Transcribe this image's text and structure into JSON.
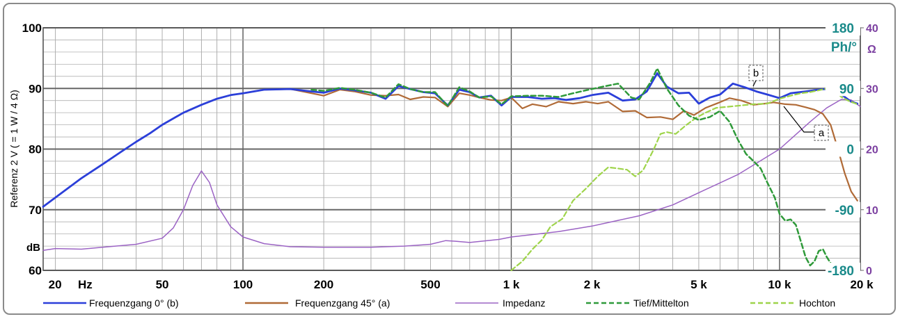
{
  "chart_data": {
    "type": "line",
    "x_scale": "log",
    "xlim": [
      18,
      20000
    ],
    "x_ticks": [
      {
        "value": 20,
        "label": "20"
      },
      {
        "value": 50,
        "label": "50"
      },
      {
        "value": 100,
        "label": "100"
      },
      {
        "value": 200,
        "label": "200"
      },
      {
        "value": 500,
        "label": "500"
      },
      {
        "value": 1000,
        "label": "1 k"
      },
      {
        "value": 2000,
        "label": "2 k"
      },
      {
        "value": 5000,
        "label": "5 k"
      },
      {
        "value": 10000,
        "label": "10 k"
      },
      {
        "value": 20000,
        "label": "20 k"
      }
    ],
    "x_unit": "Hz",
    "left_axis": {
      "label": "Referenz 2 V  ( = 1 W / 4 Ω)",
      "unit": "dB",
      "ylim": [
        60,
        100
      ],
      "ticks": [
        60,
        70,
        80,
        90,
        100
      ]
    },
    "phase_axis": {
      "unit": "Ph/°",
      "ylim": [
        -180,
        180
      ],
      "ticks": [
        180,
        90,
        0,
        -90,
        -180
      ]
    },
    "impedance_axis": {
      "unit": "Ω",
      "ylim": [
        0,
        40
      ],
      "ticks": [
        40,
        30,
        20,
        10,
        0
      ]
    },
    "grid": true,
    "legend_position": "bottom",
    "callouts": [
      {
        "label": "b",
        "series": "Frequenzgang 0° (b)"
      },
      {
        "label": "a",
        "series": "Frequenzgang 45° (a)"
      }
    ],
    "series": [
      {
        "name": "Frequenzgang 0° (b)",
        "axis": "dB",
        "color": "#2b3fd9",
        "dash": "solid",
        "width": 2.8,
        "points": [
          [
            18,
            70.5
          ],
          [
            20,
            72
          ],
          [
            25,
            75.2
          ],
          [
            30,
            77.5
          ],
          [
            35,
            79.5
          ],
          [
            40,
            81.2
          ],
          [
            45,
            82.6
          ],
          [
            50,
            84
          ],
          [
            60,
            86
          ],
          [
            70,
            87.3
          ],
          [
            80,
            88.3
          ],
          [
            90,
            88.9
          ],
          [
            100,
            89.2
          ],
          [
            120,
            89.8
          ],
          [
            150,
            89.9
          ],
          [
            180,
            89.5
          ],
          [
            200,
            89.3
          ],
          [
            230,
            90
          ],
          [
            260,
            89.7
          ],
          [
            300,
            89.3
          ],
          [
            340,
            88.3
          ],
          [
            380,
            90.4
          ],
          [
            420,
            89.9
          ],
          [
            470,
            89.4
          ],
          [
            520,
            89.2
          ],
          [
            580,
            87.2
          ],
          [
            640,
            89.8
          ],
          [
            700,
            89.4
          ],
          [
            760,
            88.5
          ],
          [
            840,
            88.8
          ],
          [
            920,
            87.2
          ],
          [
            1000,
            88.6
          ],
          [
            1150,
            88.6
          ],
          [
            1300,
            88.3
          ],
          [
            1450,
            88.4
          ],
          [
            1600,
            88.1
          ],
          [
            1800,
            88.4
          ],
          [
            2000,
            88.9
          ],
          [
            2300,
            89.3
          ],
          [
            2600,
            88
          ],
          [
            2900,
            88.2
          ],
          [
            3200,
            89.5
          ],
          [
            3500,
            92.5
          ],
          [
            3800,
            90.3
          ],
          [
            4200,
            89.2
          ],
          [
            4600,
            89.3
          ],
          [
            5000,
            87.5
          ],
          [
            5500,
            88.5
          ],
          [
            6000,
            89
          ],
          [
            6700,
            90.8
          ],
          [
            7400,
            90.2
          ],
          [
            8200,
            89.5
          ],
          [
            9000,
            89
          ],
          [
            10000,
            88.4
          ],
          [
            11000,
            89.2
          ],
          [
            12500,
            89.5
          ],
          [
            14000,
            89.8
          ],
          [
            15500,
            90
          ],
          [
            17000,
            89
          ],
          [
            18500,
            87.8
          ],
          [
            19500,
            87.5
          ]
        ]
      },
      {
        "name": "Frequenzgang 45° (a)",
        "axis": "dB",
        "color": "#b06a36",
        "dash": "solid",
        "width": 2.2,
        "points": [
          [
            18,
            70.5
          ],
          [
            20,
            72
          ],
          [
            25,
            75.2
          ],
          [
            30,
            77.5
          ],
          [
            35,
            79.5
          ],
          [
            40,
            81.2
          ],
          [
            45,
            82.6
          ],
          [
            50,
            84
          ],
          [
            60,
            86
          ],
          [
            70,
            87.3
          ],
          [
            80,
            88.3
          ],
          [
            90,
            88.9
          ],
          [
            100,
            89.2
          ],
          [
            120,
            89.8
          ],
          [
            150,
            89.9
          ],
          [
            180,
            89.2
          ],
          [
            200,
            88.8
          ],
          [
            230,
            89.8
          ],
          [
            260,
            89.5
          ],
          [
            300,
            88.9
          ],
          [
            340,
            88.8
          ],
          [
            380,
            89
          ],
          [
            420,
            88.2
          ],
          [
            470,
            88.6
          ],
          [
            520,
            88.5
          ],
          [
            580,
            87
          ],
          [
            640,
            89.2
          ],
          [
            700,
            88.9
          ],
          [
            760,
            88.5
          ],
          [
            840,
            88.1
          ],
          [
            920,
            88
          ],
          [
            1000,
            88.5
          ],
          [
            1100,
            86.7
          ],
          [
            1200,
            87.4
          ],
          [
            1350,
            87
          ],
          [
            1500,
            87.8
          ],
          [
            1700,
            87.5
          ],
          [
            1900,
            87.8
          ],
          [
            2100,
            87.5
          ],
          [
            2300,
            87.8
          ],
          [
            2600,
            86.2
          ],
          [
            2900,
            86.3
          ],
          [
            3200,
            85.2
          ],
          [
            3600,
            85.3
          ],
          [
            4000,
            84.9
          ],
          [
            4400,
            86.3
          ],
          [
            4800,
            85.6
          ],
          [
            5300,
            86.8
          ],
          [
            5900,
            87.6
          ],
          [
            6500,
            88.4
          ],
          [
            7200,
            88
          ],
          [
            8000,
            87.3
          ],
          [
            8800,
            87.5
          ],
          [
            9500,
            87.7
          ],
          [
            10500,
            87.4
          ],
          [
            11500,
            87.3
          ],
          [
            12500,
            86.9
          ],
          [
            13500,
            86.5
          ],
          [
            14500,
            85.8
          ],
          [
            15500,
            84
          ],
          [
            16500,
            80
          ],
          [
            17500,
            76
          ],
          [
            18500,
            73
          ],
          [
            19500,
            71.5
          ]
        ]
      },
      {
        "name": "Impedanz",
        "axis": "Ω",
        "color": "#9b63c4",
        "dash": "solid",
        "width": 1.5,
        "points": [
          [
            18,
            3.3
          ],
          [
            20,
            3.6
          ],
          [
            25,
            3.5
          ],
          [
            30,
            3.8
          ],
          [
            40,
            4.3
          ],
          [
            50,
            5.3
          ],
          [
            55,
            7
          ],
          [
            60,
            10
          ],
          [
            65,
            14
          ],
          [
            70,
            16.4
          ],
          [
            75,
            14.5
          ],
          [
            80,
            10.8
          ],
          [
            90,
            7.2
          ],
          [
            100,
            5.5
          ],
          [
            120,
            4.4
          ],
          [
            150,
            3.9
          ],
          [
            200,
            3.8
          ],
          [
            300,
            3.8
          ],
          [
            400,
            4
          ],
          [
            500,
            4.3
          ],
          [
            570,
            4.9
          ],
          [
            620,
            4.8
          ],
          [
            700,
            4.6
          ],
          [
            900,
            5.1
          ],
          [
            1000,
            5.5
          ],
          [
            1500,
            6.4
          ],
          [
            2000,
            7.3
          ],
          [
            3000,
            9
          ],
          [
            4000,
            10.8
          ],
          [
            5000,
            12.8
          ],
          [
            7000,
            15.8
          ],
          [
            10000,
            20
          ],
          [
            13000,
            24.5
          ],
          [
            15000,
            26.8
          ],
          [
            17000,
            28.2
          ],
          [
            18500,
            28.1
          ],
          [
            20000,
            27
          ]
        ]
      },
      {
        "name": "Tief/Mittelton",
        "axis": "dB",
        "color": "#2f9a3a",
        "dash": "dashed",
        "width": 2.5,
        "points": [
          [
            180,
            89.8
          ],
          [
            200,
            89.6
          ],
          [
            230,
            90.1
          ],
          [
            260,
            89.8
          ],
          [
            300,
            89.3
          ],
          [
            340,
            88.5
          ],
          [
            380,
            90.7
          ],
          [
            420,
            89.9
          ],
          [
            470,
            89.4
          ],
          [
            520,
            89.4
          ],
          [
            580,
            87.1
          ],
          [
            640,
            90.2
          ],
          [
            700,
            89.5
          ],
          [
            760,
            88.5
          ],
          [
            840,
            88.7
          ],
          [
            920,
            87.4
          ],
          [
            1000,
            88.7
          ],
          [
            1150,
            88.8
          ],
          [
            1300,
            88.8
          ],
          [
            1500,
            88.6
          ],
          [
            1700,
            89.2
          ],
          [
            1900,
            89.7
          ],
          [
            2200,
            90.3
          ],
          [
            2500,
            90.8
          ],
          [
            2800,
            88.5
          ],
          [
            3000,
            88.2
          ],
          [
            3300,
            91
          ],
          [
            3500,
            93.3
          ],
          [
            3800,
            90
          ],
          [
            4200,
            87.2
          ],
          [
            4600,
            85.5
          ],
          [
            5000,
            84.8
          ],
          [
            5500,
            85.3
          ],
          [
            6000,
            86.3
          ],
          [
            6500,
            84.5
          ],
          [
            7000,
            81.5
          ],
          [
            7500,
            79.2
          ],
          [
            8000,
            78
          ],
          [
            8500,
            76.8
          ],
          [
            9000,
            74.5
          ],
          [
            9600,
            72
          ],
          [
            10000,
            69.3
          ],
          [
            10500,
            68.2
          ],
          [
            11000,
            68.4
          ],
          [
            11500,
            67.5
          ],
          [
            12000,
            64.8
          ],
          [
            12500,
            62.2
          ],
          [
            13000,
            60.8
          ],
          [
            13500,
            61.5
          ],
          [
            14000,
            63.2
          ],
          [
            14500,
            63.5
          ],
          [
            15000,
            62.2
          ],
          [
            15500,
            61.2
          ]
        ]
      },
      {
        "name": "Hochton",
        "axis": "dB",
        "color": "#9ed44a",
        "dash": "dashed",
        "width": 2.2,
        "points": [
          [
            1000,
            60
          ],
          [
            1100,
            61.5
          ],
          [
            1200,
            63.5
          ],
          [
            1300,
            65
          ],
          [
            1400,
            67.2
          ],
          [
            1550,
            68.5
          ],
          [
            1700,
            71.5
          ],
          [
            1900,
            73.5
          ],
          [
            2100,
            75.5
          ],
          [
            2300,
            77
          ],
          [
            2500,
            76.8
          ],
          [
            2700,
            76.6
          ],
          [
            2900,
            75.5
          ],
          [
            3100,
            76.5
          ],
          [
            3400,
            80
          ],
          [
            3600,
            82.5
          ],
          [
            3800,
            82.8
          ],
          [
            4100,
            82.5
          ],
          [
            4500,
            84
          ],
          [
            4900,
            85.2
          ],
          [
            5300,
            86
          ],
          [
            5800,
            86.8
          ],
          [
            6500,
            87
          ],
          [
            7200,
            87.2
          ],
          [
            8000,
            87.4
          ],
          [
            9000,
            87.5
          ],
          [
            10000,
            88.3
          ],
          [
            11000,
            88.8
          ],
          [
            12000,
            89.2
          ],
          [
            13000,
            89.4
          ],
          [
            14000,
            89.7
          ],
          [
            15000,
            90
          ],
          [
            16000,
            89.6
          ],
          [
            17000,
            88.6
          ],
          [
            18000,
            88
          ],
          [
            19000,
            87.6
          ],
          [
            19700,
            87.3
          ]
        ]
      }
    ]
  }
}
